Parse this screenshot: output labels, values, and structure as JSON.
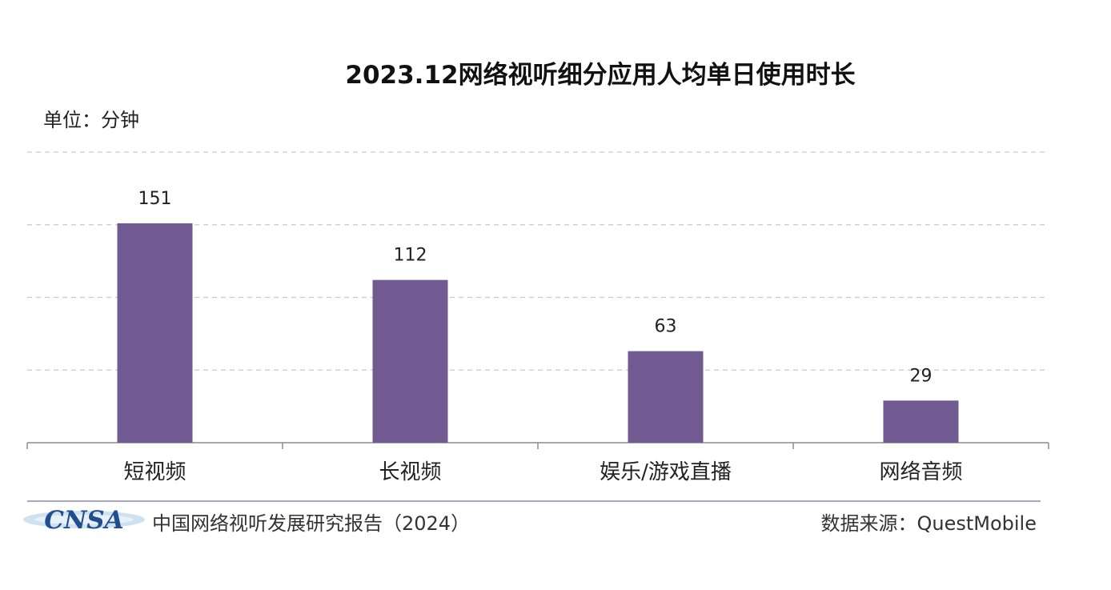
{
  "chart_data": {
    "type": "bar",
    "title": "2023.12网络视听细分应用人均单日使用时长",
    "unit_label": "单位：分钟",
    "categories": [
      "短视频",
      "长视频",
      "娱乐/游戏直播",
      "网络音频"
    ],
    "values": [
      151,
      112,
      63,
      29
    ],
    "ylim": [
      0,
      200
    ],
    "grid": true,
    "bar_color": "#715a91"
  },
  "footer": {
    "logo_text": "CNSA",
    "report": "中国网络视听发展研究报告（2024）",
    "source": "数据来源：QuestMobile"
  }
}
